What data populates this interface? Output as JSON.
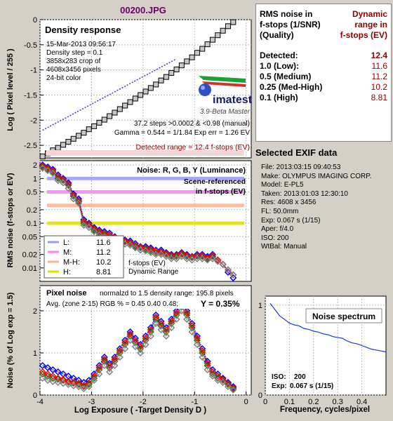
{
  "file_title": "00200.JPG",
  "density_panel": {
    "title": "Density response",
    "info_lines": [
      "15-Mar-2013 09:56:17",
      "Density step = 0.1",
      "3858x283 crop of",
      "4608x3456 pixels",
      "24-bit color"
    ],
    "logo_text": "imatest",
    "version": "3.9-Beta  Master",
    "stats_lines": [
      "37.2 steps >0.0002 & <0.98 (manual)",
      "Gamma = 0.544 = 1/1.84  Exp err = 1.26 EV"
    ],
    "detected_range": "Detected range = 12.4 f-stops (EV)",
    "ylabel": "Log ( Pixel level / 255 )",
    "yticks": [
      "0",
      "-0.5",
      "-1",
      "-1.5",
      "-2",
      "-2.5"
    ]
  },
  "noise_panel": {
    "title": "Noise: R, G, B, Y (Luminance)",
    "scene_lines": [
      "Scene-referenced",
      "in f-stops (EV)"
    ],
    "ylabel": "RMS noise (f-stops or EV)",
    "yticks": [
      "2",
      "1",
      "0.5",
      "0.2",
      "0.1",
      "0.05",
      "0.02",
      "0.01"
    ],
    "legend": [
      {
        "label": "L:",
        "value": "11.6",
        "color": "#9a9aff"
      },
      {
        "label": "M:",
        "value": "11.2",
        "color": "#ff80ff"
      },
      {
        "label": "M-H:",
        "value": "10.2",
        "color": "#ffb090"
      },
      {
        "label": "H:",
        "value": "8.81",
        "color": "#e0e000"
      }
    ],
    "legend_note_lines": [
      "f-stops (EV)",
      "Dynamic Range"
    ]
  },
  "pixel_panel": {
    "title": "Pixel noise",
    "normalized_text": "normalzd to 1.5 density range: 195.8 pixels",
    "avg_text": "Avg. (zone 2-15) RGB % = 0.45  0.40  0.48;",
    "y_text": "Y = 0.35%",
    "ylabel": "Noise (% of Log exp = 1.5)",
    "yticks": [
      "2",
      "1",
      "0"
    ],
    "xlabel": "Log Exposure ( -Target Density D )",
    "xticks": [
      "-4",
      "-3",
      "-2",
      "-1",
      "0"
    ]
  },
  "spectrum_panel": {
    "title": "Noise spectrum",
    "yticks": [
      "1",
      "0"
    ],
    "xticks": [
      "0",
      "0.1",
      "0.2",
      "0.3",
      "0.4"
    ],
    "xlabel": "Frequency, cycles/pixel",
    "iso_label": "ISO:",
    "iso_value": "200",
    "exp_label": "Exp:",
    "exp_value": "0.067 s   (1/15)"
  },
  "dynamic_range_table": {
    "header_left_lines": [
      "RMS noise in",
      "f-stops (1/SNR)",
      "(Quality)"
    ],
    "header_right_lines": [
      "Dynamic",
      "range in",
      "f-stops (EV)"
    ],
    "rows": [
      {
        "label": "Detected:",
        "value": "12.4"
      },
      {
        "label": "1.0   (Low):",
        "value": "11.6"
      },
      {
        "label": "0.5   (Medium)",
        "value": "11.2"
      },
      {
        "label": "0.25 (Med-High)",
        "value": "10.2"
      },
      {
        "label": "0.1   (High)",
        "value": "8.81"
      }
    ]
  },
  "exif": {
    "title": "Selected EXIF data",
    "lines": [
      "File:  2013:03:15 09:40:53",
      "Make:  OLYMPUS IMAGING CORP.",
      "Model: E-PL5",
      "Taken: 2013:01:03 12:30:10",
      "Res:    4608 x 3456",
      "FL:    50.0mm",
      "Exp:   0.067 s   (1/15)",
      "Aper:  f/4.0",
      "ISO:    200",
      "WtBal: Manual"
    ]
  },
  "chart_data": [
    {
      "type": "scatter",
      "title": "Density response",
      "xlabel": "",
      "ylabel": "Log ( Pixel level / 255 )",
      "xlim": [
        -4,
        0.1
      ],
      "ylim": [
        -2.75,
        0
      ],
      "series": [
        {
          "x": [
            -3.95,
            -3.85,
            -3.75,
            -3.65,
            -3.55,
            -3.45,
            -3.35,
            -3.25,
            -3.15,
            -3.05,
            -2.95,
            -2.85,
            -2.75,
            -2.65,
            -2.55,
            -2.45,
            -2.35,
            -2.25,
            -2.15,
            -2.05,
            -1.95,
            -1.85,
            -1.75,
            -1.65,
            -1.55,
            -1.45,
            -1.35,
            -1.25,
            -1.15,
            -1.05,
            -0.95,
            -0.85,
            -0.75,
            -0.65,
            -0.55,
            -0.45,
            -0.35,
            -0.25
          ],
          "values": [
            -2.72,
            -2.66,
            -2.6,
            -2.55,
            -2.49,
            -2.43,
            -2.37,
            -2.31,
            -2.25,
            -2.18,
            -2.12,
            -2.05,
            -1.99,
            -1.92,
            -1.85,
            -1.78,
            -1.71,
            -1.64,
            -1.57,
            -1.5,
            -1.43,
            -1.36,
            -1.29,
            -1.21,
            -1.14,
            -1.06,
            -0.99,
            -0.91,
            -0.83,
            -0.75,
            -0.66,
            -0.58,
            -0.49,
            -0.4,
            -0.31,
            -0.22,
            -0.13,
            -0.05
          ]
        }
      ],
      "fit_line": {
        "x": [
          -3.95,
          -1.35
        ],
        "values": [
          -2.2,
          -0.78
        ]
      }
    },
    {
      "type": "line",
      "title": "Noise: R, G, B, Y (Luminance)",
      "ylabel": "RMS noise (f-stops or EV)",
      "yscale": "log",
      "xlim": [
        -4,
        0.1
      ],
      "ylim": [
        0.005,
        2.5
      ],
      "x": [
        -3.95,
        -3.85,
        -3.75,
        -3.65,
        -3.55,
        -3.45,
        -3.35,
        -3.25,
        -3.15,
        -3.05,
        -2.95,
        -2.85,
        -2.75,
        -2.65,
        -2.55,
        -2.45,
        -2.35,
        -2.25,
        -2.15,
        -2.05,
        -1.95,
        -1.85,
        -1.75,
        -1.65,
        -1.55,
        -1.45,
        -1.35,
        -1.25,
        -1.15,
        -1.05,
        -0.95,
        -0.85,
        -0.75,
        -0.65,
        -0.55,
        -0.45,
        -0.35,
        -0.25
      ],
      "series": [
        {
          "color": "#0000ff",
          "values": [
            2.0,
            1.8,
            1.6,
            1.2,
            1.0,
            0.8,
            0.45,
            0.35,
            0.12,
            0.1,
            0.08,
            0.07,
            0.065,
            0.06,
            0.05,
            0.045,
            0.042,
            0.04,
            0.035,
            0.03,
            0.03,
            0.028,
            0.025,
            0.025,
            0.022,
            0.02,
            0.02,
            0.022,
            0.02,
            0.018,
            0.02,
            0.02,
            0.018,
            0.02,
            0.015,
            0.012,
            0.008,
            0.006
          ]
        },
        {
          "color": "#008000",
          "values": [
            1.8,
            1.6,
            1.4,
            1.0,
            0.9,
            0.7,
            0.4,
            0.3,
            0.1,
            0.09,
            0.07,
            0.06,
            0.055,
            0.05,
            0.045,
            0.04,
            0.038,
            0.035,
            0.03,
            0.028,
            0.026,
            0.024,
            0.022,
            0.022,
            0.02,
            0.018,
            0.018,
            0.02,
            0.018,
            0.017,
            0.018,
            0.018,
            0.016,
            0.018,
            0.015,
            0.012,
            0.009,
            0.007
          ]
        },
        {
          "color": "#ff0000",
          "values": [
            1.9,
            1.7,
            1.5,
            1.1,
            0.95,
            0.75,
            0.42,
            0.32,
            0.11,
            0.095,
            0.075,
            0.065,
            0.06,
            0.055,
            0.048,
            0.043,
            0.04,
            0.037,
            0.032,
            0.029,
            0.028,
            0.026,
            0.024,
            0.023,
            0.021,
            0.019,
            0.019,
            0.021,
            0.019,
            0.018,
            0.019,
            0.019,
            0.017,
            0.019,
            0.015,
            0.012,
            0.009,
            0.007
          ]
        },
        {
          "color": "#808080",
          "values": [
            1.7,
            1.5,
            1.3,
            0.9,
            0.8,
            0.6,
            0.35,
            0.28,
            0.09,
            0.08,
            0.065,
            0.055,
            0.05,
            0.045,
            0.04,
            0.036,
            0.034,
            0.032,
            0.028,
            0.025,
            0.024,
            0.022,
            0.02,
            0.02,
            0.018,
            0.016,
            0.016,
            0.018,
            0.016,
            0.015,
            0.016,
            0.016,
            0.015,
            0.016,
            0.014,
            0.012,
            0.009,
            0.007
          ]
        }
      ],
      "thresholds": [
        {
          "label": "L",
          "value": 1.0,
          "color": "#9a9aff"
        },
        {
          "label": "M",
          "value": 0.5,
          "color": "#ff80ff"
        },
        {
          "label": "M-H",
          "value": 0.25,
          "color": "#ffb090"
        },
        {
          "label": "H",
          "value": 0.1,
          "color": "#e0e000"
        }
      ]
    },
    {
      "type": "line",
      "title": "Pixel noise",
      "xlabel": "Log Exposure ( -Target Density D )",
      "ylabel": "Noise (% of Log exp = 1.5)",
      "xlim": [
        -4,
        0.1
      ],
      "ylim": [
        0,
        2.6
      ],
      "x": [
        -3.95,
        -3.85,
        -3.75,
        -3.65,
        -3.55,
        -3.45,
        -3.35,
        -3.25,
        -3.15,
        -3.05,
        -2.95,
        -2.85,
        -2.75,
        -2.65,
        -2.55,
        -2.45,
        -2.35,
        -2.25,
        -2.15,
        -2.05,
        -1.95,
        -1.85,
        -1.75,
        -1.65,
        -1.55,
        -1.45,
        -1.35,
        -1.25,
        -1.15,
        -1.05,
        -0.95,
        -0.85,
        -0.75,
        -0.65,
        -0.55,
        -0.45,
        -0.35,
        -0.25
      ],
      "series": [
        {
          "color": "#0000ff",
          "values": [
            0.7,
            0.65,
            0.6,
            0.55,
            0.5,
            0.45,
            0.4,
            0.35,
            0.3,
            0.35,
            0.5,
            0.7,
            0.9,
            0.75,
            0.9,
            1.1,
            1.3,
            1.5,
            1.35,
            1.2,
            1.4,
            1.6,
            1.9,
            1.75,
            1.6,
            1.8,
            2.0,
            2.2,
            2.0,
            1.7,
            1.4,
            1.1,
            0.8,
            0.6,
            0.5,
            0.4,
            0.3,
            0.2
          ]
        },
        {
          "color": "#008000",
          "values": [
            0.5,
            0.45,
            0.4,
            0.38,
            0.35,
            0.3,
            0.28,
            0.25,
            0.2,
            0.25,
            0.4,
            0.6,
            0.8,
            0.65,
            0.8,
            1.0,
            1.2,
            1.4,
            1.25,
            1.1,
            1.3,
            1.5,
            1.8,
            1.65,
            1.5,
            1.7,
            1.9,
            2.1,
            1.9,
            1.6,
            1.3,
            1.0,
            0.7,
            0.5,
            0.4,
            0.35,
            0.25,
            0.15
          ]
        },
        {
          "color": "#ff0000",
          "values": [
            0.55,
            0.5,
            0.45,
            0.4,
            0.37,
            0.33,
            0.3,
            0.27,
            0.22,
            0.28,
            0.45,
            0.65,
            0.85,
            0.7,
            0.85,
            1.05,
            1.25,
            1.45,
            1.3,
            1.15,
            1.35,
            1.55,
            1.85,
            1.7,
            1.55,
            1.75,
            1.95,
            2.15,
            1.95,
            1.65,
            1.35,
            1.05,
            0.75,
            0.55,
            0.45,
            0.37,
            0.27,
            0.17
          ]
        },
        {
          "color": "#808080",
          "values": [
            0.4,
            0.35,
            0.32,
            0.3,
            0.28,
            0.25,
            0.22,
            0.2,
            0.15,
            0.2,
            0.35,
            0.5,
            0.7,
            0.55,
            0.7,
            0.9,
            1.1,
            1.3,
            1.15,
            1.0,
            1.2,
            1.4,
            1.7,
            1.55,
            1.4,
            1.6,
            1.8,
            2.0,
            1.8,
            1.5,
            1.2,
            0.9,
            0.6,
            0.45,
            0.35,
            0.3,
            0.2,
            0.12
          ]
        }
      ]
    },
    {
      "type": "line",
      "title": "Noise spectrum",
      "xlabel": "Frequency, cycles/pixel",
      "xlim": [
        0,
        0.5
      ],
      "ylim": [
        0,
        1.1
      ],
      "x": [
        0.02,
        0.04,
        0.06,
        0.08,
        0.1,
        0.12,
        0.14,
        0.16,
        0.18,
        0.2,
        0.22,
        0.24,
        0.26,
        0.28,
        0.3,
        0.32,
        0.34,
        0.36,
        0.38,
        0.4,
        0.42,
        0.44,
        0.46,
        0.48,
        0.5
      ],
      "values": [
        1.02,
        0.95,
        0.88,
        0.84,
        0.8,
        0.78,
        0.77,
        0.74,
        0.73,
        0.71,
        0.7,
        0.68,
        0.67,
        0.65,
        0.64,
        0.63,
        0.6,
        0.58,
        0.57,
        0.55,
        0.53,
        0.51,
        0.5,
        0.49,
        0.48
      ]
    }
  ]
}
